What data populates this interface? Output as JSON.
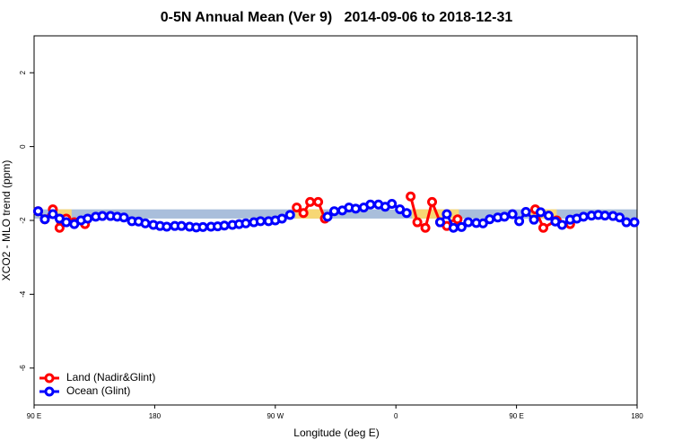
{
  "chart_data": {
    "type": "line",
    "title": "0-5N Annual Mean (Ver 9)   2014-09-06 to 2018-12-31",
    "x_label": "Longitude (deg E)",
    "y_label": "XCO2 - MLO trend (ppm)",
    "xlim": [
      90,
      540
    ],
    "ylim": [
      -7,
      3
    ],
    "xticks": [
      {
        "value": 90,
        "label": "90 E"
      },
      180,
      {
        "value": 270,
        "label": "90 W"
      },
      {
        "value": 360,
        "label": "0"
      },
      {
        "value": 450,
        "label": "90 E"
      },
      {
        "value": 540,
        "label": "180"
      }
    ],
    "yticks": [
      -6,
      -4,
      -2,
      0,
      2
    ],
    "legend": "bottom-left",
    "band": {
      "lower": -1.95,
      "upper": -1.7,
      "color": "#a9bedb",
      "land_color": "#f7d774",
      "land_ranges": [
        [
          106,
          118
        ],
        [
          285,
          306
        ],
        [
          372,
          407
        ],
        [
          460,
          480
        ]
      ]
    },
    "series": [
      {
        "name": "Land (Nadir&Glint)",
        "color": "#ff0000",
        "x": [
          93,
          98,
          104,
          109,
          114,
          120,
          128,
          286,
          291,
          296,
          302,
          307,
          371,
          376,
          382,
          387,
          393,
          398,
          403,
          406,
          464,
          470,
          480,
          490
        ],
        "values": [
          -1.75,
          -1.97,
          -1.7,
          -2.2,
          -1.95,
          -2.05,
          -2.1,
          -1.65,
          -1.8,
          -1.5,
          -1.5,
          -1.95,
          -1.35,
          -2.05,
          -2.2,
          -1.5,
          -2.05,
          -2.15,
          -2.1,
          -1.97,
          -1.7,
          -2.2,
          -2.0,
          -2.1
        ]
      },
      {
        "name": "Ocean (Glint)",
        "color": "#0000ff",
        "x": [
          93,
          98,
          104,
          109,
          114,
          120,
          125,
          130,
          136,
          141,
          147,
          152,
          157,
          163,
          168,
          173,
          179,
          184,
          189,
          195,
          200,
          206,
          211,
          216,
          222,
          227,
          232,
          238,
          243,
          248,
          254,
          259,
          265,
          270,
          275,
          281,
          309,
          314,
          320,
          325,
          330,
          336,
          341,
          347,
          352,
          357,
          363,
          368,
          393,
          398,
          403,
          409,
          414,
          420,
          425,
          430,
          436,
          441,
          447,
          452,
          457,
          463,
          468,
          474,
          479,
          484,
          490,
          495,
          500,
          506,
          511,
          516,
          522,
          527,
          532,
          538
        ],
        "values": [
          -1.75,
          -1.97,
          -1.83,
          -1.95,
          -2.05,
          -2.1,
          -2.0,
          -1.95,
          -1.9,
          -1.88,
          -1.88,
          -1.9,
          -1.92,
          -2.02,
          -2.03,
          -2.08,
          -2.12,
          -2.15,
          -2.17,
          -2.15,
          -2.15,
          -2.17,
          -2.19,
          -2.18,
          -2.17,
          -2.16,
          -2.14,
          -2.12,
          -2.1,
          -2.08,
          -2.05,
          -2.02,
          -2.02,
          -2.0,
          -1.95,
          -1.85,
          -1.9,
          -1.75,
          -1.73,
          -1.65,
          -1.68,
          -1.65,
          -1.57,
          -1.57,
          -1.63,
          -1.55,
          -1.7,
          -1.8,
          -2.05,
          -1.83,
          -2.2,
          -2.18,
          -2.05,
          -2.07,
          -2.08,
          -1.97,
          -1.92,
          -1.9,
          -1.83,
          -2.02,
          -1.77,
          -1.98,
          -1.78,
          -1.87,
          -2.03,
          -2.12,
          -1.98,
          -1.95,
          -1.9,
          -1.87,
          -1.85,
          -1.87,
          -1.88,
          -1.92,
          -2.05,
          -2.05
        ]
      }
    ]
  }
}
